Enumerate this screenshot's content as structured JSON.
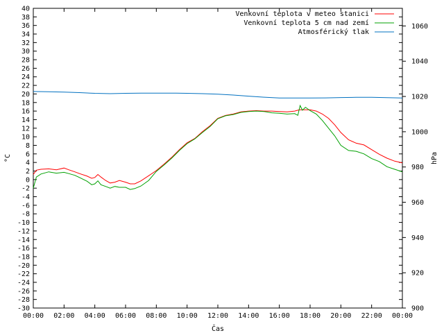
{
  "chart_data": {
    "type": "line",
    "xlabel": "Čas",
    "ylabel": "°C",
    "y2label": "hPa",
    "xlim": [
      0,
      24
    ],
    "ylim": [
      -30,
      40
    ],
    "y2lim": [
      900,
      1070
    ],
    "grid": false,
    "legend_position": "top-right",
    "x_ticks": [
      "00:00",
      "02:00",
      "04:00",
      "06:00",
      "08:00",
      "10:00",
      "12:00",
      "14:00",
      "16:00",
      "18:00",
      "20:00",
      "22:00",
      "00:00"
    ],
    "y_ticks": [
      40,
      38,
      36,
      34,
      32,
      30,
      28,
      26,
      24,
      22,
      20,
      18,
      16,
      14,
      12,
      10,
      8,
      6,
      4,
      2,
      0,
      -2,
      -4,
      -6,
      -8,
      -10,
      -12,
      -14,
      -16,
      -18,
      -20,
      -22,
      -24,
      -26,
      -28,
      -30
    ],
    "y2_ticks": [
      1060,
      1040,
      1020,
      1000,
      980,
      960,
      940,
      920,
      900
    ],
    "series": [
      {
        "name": "Venkovní teplota v meteo stanici",
        "axis": "left",
        "color": "#ff0000",
        "x": [
          0,
          0.2,
          0.5,
          1,
          1.5,
          2,
          2.3,
          2.7,
          3,
          3.5,
          3.8,
          4,
          4.2,
          4.4,
          4.7,
          5,
          5.3,
          5.6,
          6,
          6.3,
          6.6,
          7,
          7.5,
          8,
          8.5,
          9,
          9.5,
          10,
          10.5,
          11,
          11.5,
          12,
          12.5,
          13,
          13.5,
          14,
          14.5,
          15,
          15.5,
          16,
          16.5,
          17,
          17.3,
          17.6,
          18,
          18.4,
          18.8,
          19.2,
          19.6,
          20,
          20.5,
          21,
          21.5,
          22,
          22.5,
          23,
          23.5,
          24
        ],
        "y": [
          1.2,
          2.2,
          2.4,
          2.5,
          2.3,
          2.7,
          2.3,
          1.8,
          1.4,
          0.8,
          0.3,
          0.5,
          1.2,
          0.6,
          -0.2,
          -0.8,
          -0.6,
          -0.2,
          -0.6,
          -1.0,
          -1.0,
          -0.3,
          0.9,
          2.1,
          3.6,
          5.2,
          7.0,
          8.6,
          9.6,
          11.2,
          12.6,
          14.3,
          15.0,
          15.3,
          15.8,
          16.0,
          16.1,
          16.0,
          16.0,
          15.9,
          15.8,
          16.0,
          16.3,
          16.3,
          16.3,
          16.0,
          15.3,
          14.3,
          12.8,
          11.0,
          9.3,
          8.5,
          8.1,
          7.0,
          5.9,
          5.0,
          4.3,
          3.9
        ]
      },
      {
        "name": "Venkovní teplota 5 cm nad zemí",
        "axis": "left",
        "color": "#00a000",
        "x": [
          0,
          0.2,
          0.5,
          1,
          1.5,
          2,
          2.3,
          2.7,
          3,
          3.5,
          3.8,
          4,
          4.2,
          4.4,
          4.7,
          5,
          5.3,
          5.6,
          6,
          6.3,
          6.6,
          7,
          7.5,
          8,
          8.5,
          9,
          9.5,
          10,
          10.5,
          11,
          11.5,
          12,
          12.5,
          13,
          13.5,
          14,
          14.5,
          15,
          15.5,
          16,
          16.5,
          17,
          17.2,
          17.35,
          17.5,
          17.7,
          18,
          18.4,
          18.8,
          19.2,
          19.6,
          20,
          20.5,
          21,
          21.5,
          22,
          22.5,
          23,
          23.5,
          24
        ],
        "y": [
          -2.0,
          0.6,
          1.3,
          1.8,
          1.5,
          1.7,
          1.4,
          1.0,
          0.5,
          -0.4,
          -1.2,
          -1.0,
          -0.3,
          -1.2,
          -1.6,
          -2.0,
          -1.6,
          -1.8,
          -1.8,
          -2.3,
          -2.1,
          -1.5,
          -0.2,
          1.9,
          3.4,
          5.0,
          6.8,
          8.4,
          9.5,
          11.0,
          12.4,
          14.2,
          14.9,
          15.2,
          15.7,
          15.9,
          16.0,
          15.9,
          15.6,
          15.5,
          15.3,
          15.4,
          15.0,
          17.3,
          16.2,
          16.9,
          16.1,
          15.3,
          13.8,
          12.0,
          10.2,
          8.0,
          6.8,
          6.6,
          6.0,
          4.9,
          4.2,
          3.0,
          2.4,
          1.8
        ]
      },
      {
        "name": "Atmosférický tlak",
        "axis": "right",
        "color": "#0070c0",
        "x": [
          0,
          1,
          2,
          3,
          4,
          5,
          6,
          7,
          8,
          9,
          10,
          11,
          12,
          13,
          14,
          15,
          16,
          17,
          18,
          19,
          20,
          21,
          22,
          23,
          24
        ],
        "y": [
          1022.8,
          1022.7,
          1022.5,
          1022.2,
          1021.8,
          1021.6,
          1021.8,
          1021.9,
          1021.9,
          1021.9,
          1021.8,
          1021.6,
          1021.3,
          1020.8,
          1020.2,
          1019.6,
          1019.1,
          1019.1,
          1019.1,
          1019.2,
          1019.4,
          1019.5,
          1019.5,
          1019.3,
          1019.1
        ]
      }
    ]
  }
}
